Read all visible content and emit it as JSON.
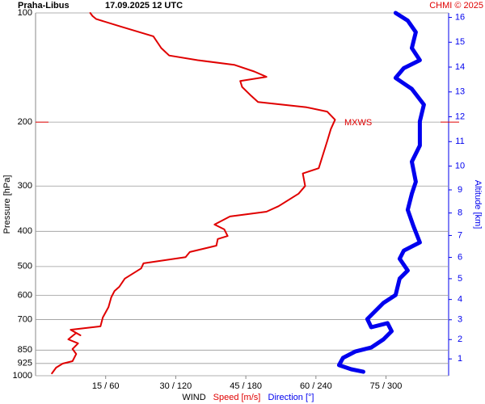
{
  "chart_data": {
    "type": "line",
    "station": "Praha-Libus",
    "datetime": "17.09.2025 12 UTC",
    "credit": "CHMI © 2025",
    "ylabel": "Pressure [hPa]",
    "y2label": "Altitude [km]",
    "xlabel": "WIND",
    "ylim": [
      100,
      1000
    ],
    "ylog": true,
    "yinverted": true,
    "grid": true,
    "yticks": [
      100,
      200,
      300,
      400,
      500,
      600,
      700,
      850,
      925,
      1000
    ],
    "y2ticks": [
      1,
      2,
      3,
      4,
      5,
      6,
      7,
      8,
      9,
      10,
      11,
      12,
      13,
      14,
      15,
      16
    ],
    "xlim": [
      0,
      88.4
    ],
    "x2lim": [
      0,
      353.6
    ],
    "xticks": [
      {
        "value": 15,
        "label": "15 / 60"
      },
      {
        "value": 30,
        "label": "30 / 120"
      },
      {
        "value": 45,
        "label": "45 / 180"
      },
      {
        "value": 60,
        "label": "60 / 240"
      },
      {
        "value": 75,
        "label": "75 / 300"
      }
    ],
    "annotations": [
      {
        "text": "MXWS",
        "y": 200
      }
    ],
    "series": [
      {
        "name": "Speed [m/s]",
        "color": "#e00000",
        "x": [
          3.5,
          4.4,
          5.8,
          7.9,
          8.7,
          7.9,
          9.1,
          7.0,
          8.7,
          9.6,
          7.5,
          13.9,
          14.4,
          15.6,
          16.2,
          16.9,
          17.9,
          19.1,
          22.6,
          23.1,
          32.1,
          33.0,
          38.7,
          39.0,
          41.1,
          40.4,
          38.3,
          41.6,
          49.4,
          52.0,
          56.3,
          57.7,
          57.2,
          60.6,
          62.4,
          63.2,
          64.1,
          62.4,
          58.0,
          47.6,
          45.9,
          44.2,
          43.8,
          49.4,
          46.8,
          42.5,
          34.7,
          28.6,
          26.9,
          25.2,
          18.2,
          13.0,
          12.2,
          11.7
        ],
        "y": [
          985,
          950,
          926,
          912,
          871,
          844,
          814,
          794,
          762,
          774,
          747,
          731,
          691,
          647,
          608,
          584,
          569,
          540,
          506,
          490,
          471,
          456,
          438,
          420,
          412,
          395,
          383,
          364,
          353,
          341,
          315,
          300,
          277,
          268,
          226,
          209,
          197,
          187,
          182,
          176,
          168,
          160,
          154,
          150,
          145,
          139,
          135,
          131,
          125,
          116,
          109,
          104,
          102,
          100
        ]
      },
      {
        "name": "Direction [°]",
        "color": "#0000ee",
        "axis": "x2",
        "x": [
          280.6,
          270.2,
          259.8,
          263.2,
          273.6,
          287.4,
          297.8,
          304.8,
          301.3,
          287.4,
          284.0,
          290.9,
          297.8,
          308.2,
          311.7,
          318.6,
          311.7,
          315.2,
          329.0,
          323.5,
          318.6,
          322.1,
          325.5,
          322.1,
          329.0,
          329.0,
          332.4,
          322.1,
          308.2,
          315.2,
          329.0,
          322.1,
          325.5,
          318.6,
          308.2
        ],
        "y": [
          975,
          960,
          935,
          893,
          858,
          836,
          794,
          754,
          716,
          735,
          698,
          663,
          630,
          599,
          540,
          513,
          476,
          452,
          429,
          387,
          349,
          315,
          292,
          257,
          232,
          199,
          179,
          162,
          151,
          142,
          135,
          125,
          113,
          105,
          100
        ]
      }
    ]
  }
}
